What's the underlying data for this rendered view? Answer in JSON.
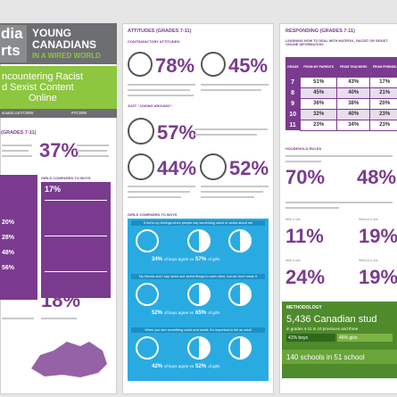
{
  "header": {
    "logo_top": "dia",
    "logo_bottom": "rts",
    "brand": [
      "YOUNG",
      "CANADIANS",
      "IN A WIRED WORLD"
    ],
    "title": [
      "ncountering Racist",
      "d Sexist Content",
      "Online"
    ],
    "links": [
      "smarts.ca/YCWW",
      "#YCWW"
    ]
  },
  "left": {
    "grades": "(GRADES 7-11)",
    "stat_a": "37%",
    "table_label": "GIRLS COMPARED TO BOYS",
    "table_stats": [
      "17%",
      "20%",
      "28%",
      "48%",
      "56%"
    ],
    "stat_b": "18%"
  },
  "attitudes": {
    "heading": "ATTITUDES (GRADES 7-11)",
    "sub_a": "CONTRADICTORY ATTITUDES:",
    "stats_a": [
      "78%",
      "45%"
    ],
    "sub_b": "JUST \"JOKING AROUND\":",
    "stat_b": "57%",
    "stats_c": [
      "44%",
      "52%"
    ],
    "sub_c": "GIRLS COMPARED TO BOYS",
    "rows": [
      {
        "text": "It hurts my feelings when people say something racist or sexist about me",
        "boys": "34%",
        "girls": "57%"
      },
      {
        "text": "My friends and I say racist and sexist things to each other, but we don't mean it",
        "boys": "52%",
        "girls": "65%"
      },
      {
        "text": "When you see something racist and sexist, it's important to tell an adult",
        "boys": "42%",
        "girls": "52%"
      }
    ],
    "of_boys": "of boys agree vs",
    "of_girls": "of girls"
  },
  "responding": {
    "heading": "RESPONDING (GRADES 7-11)",
    "sub": "LEARNING HOW TO DEAL WITH HATEFUL, RACIST OR SEXIST ONLINE INFORMATION:",
    "columns": [
      "GRADE",
      "FROM MY PARENTS",
      "FROM TEACHERS",
      "FROM FRIENDS"
    ],
    "rows": [
      [
        "7",
        "51%",
        "43%",
        "17%"
      ],
      [
        "8",
        "45%",
        "40%",
        "21%"
      ],
      [
        "9",
        "36%",
        "38%",
        "20%"
      ],
      [
        "10",
        "32%",
        "40%",
        "23%"
      ],
      [
        "11",
        "23%",
        "34%",
        "23%"
      ]
    ],
    "rules_heading": "HOUSEHOLD RULES",
    "stats_a": [
      "70%",
      "48%"
    ],
    "with_rule": "With a rule",
    "without_rule": "Without a rule",
    "stats_b": [
      "11%",
      "19%"
    ],
    "stats_c": [
      "24%",
      "19%"
    ]
  },
  "methodology": {
    "heading": "METHODOLOGY",
    "students": "5,436 Canadian stud",
    "detail": "in grades 4-11 in 10 provinces and three",
    "boys": "41% boys",
    "girls": "46% girls",
    "schools": "140 schools in 51 school"
  }
}
